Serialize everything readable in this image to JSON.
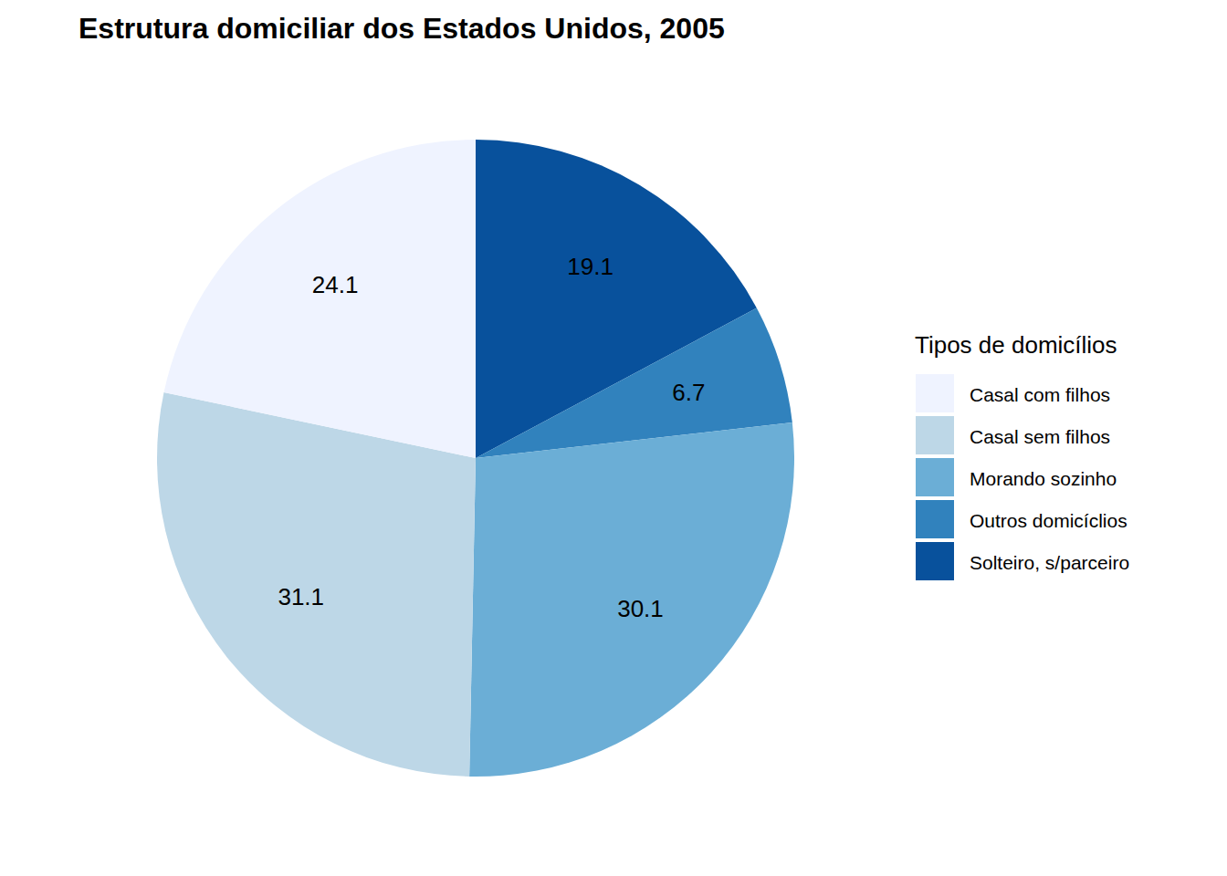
{
  "chart_data": {
    "type": "pie",
    "title": "Estrutura domiciliar dos Estados Unidos, 2005",
    "legend_title": "Tipos de domicílios",
    "categories": [
      "Casal com filhos",
      "Casal sem filhos",
      "Morando sozinho",
      "Outros domicíclios",
      "Solteiro, s/parceiro"
    ],
    "values": [
      24.1,
      31.1,
      30.1,
      6.7,
      19.1
    ],
    "colors": [
      "#eff3ff",
      "#bdd7e7",
      "#6baed6",
      "#3182bd",
      "#08519c"
    ],
    "data_labels": true,
    "legend": "right"
  }
}
